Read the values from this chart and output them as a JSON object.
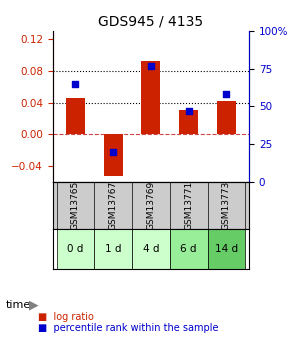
{
  "title": "GDS945 / 4135",
  "samples": [
    "GSM13765",
    "GSM13767",
    "GSM13769",
    "GSM13771",
    "GSM13773"
  ],
  "time_labels": [
    "0 d",
    "1 d",
    "4 d",
    "6 d",
    "14 d"
  ],
  "time_colors": [
    "#ccffcc",
    "#ccffcc",
    "#ccffcc",
    "#99ee99",
    "#66cc66"
  ],
  "log_ratios": [
    0.046,
    -0.053,
    0.092,
    0.031,
    0.042
  ],
  "percentile_ranks": [
    65,
    20,
    77,
    47,
    58
  ],
  "bar_color": "#cc2200",
  "dot_color": "#0000cc",
  "left_ylim": [
    -0.06,
    0.13
  ],
  "right_ylim": [
    0,
    100
  ],
  "left_yticks": [
    -0.04,
    0,
    0.04,
    0.08,
    0.12
  ],
  "right_yticks": [
    0,
    25,
    50,
    75,
    100
  ],
  "right_yticklabels": [
    "0",
    "25",
    "50",
    "75",
    "100%"
  ],
  "hlines": [
    0.04,
    0.08
  ],
  "zero_line_y": 0,
  "bg_color": "#ffffff",
  "sample_bg": "#cccccc",
  "bar_width": 0.5
}
